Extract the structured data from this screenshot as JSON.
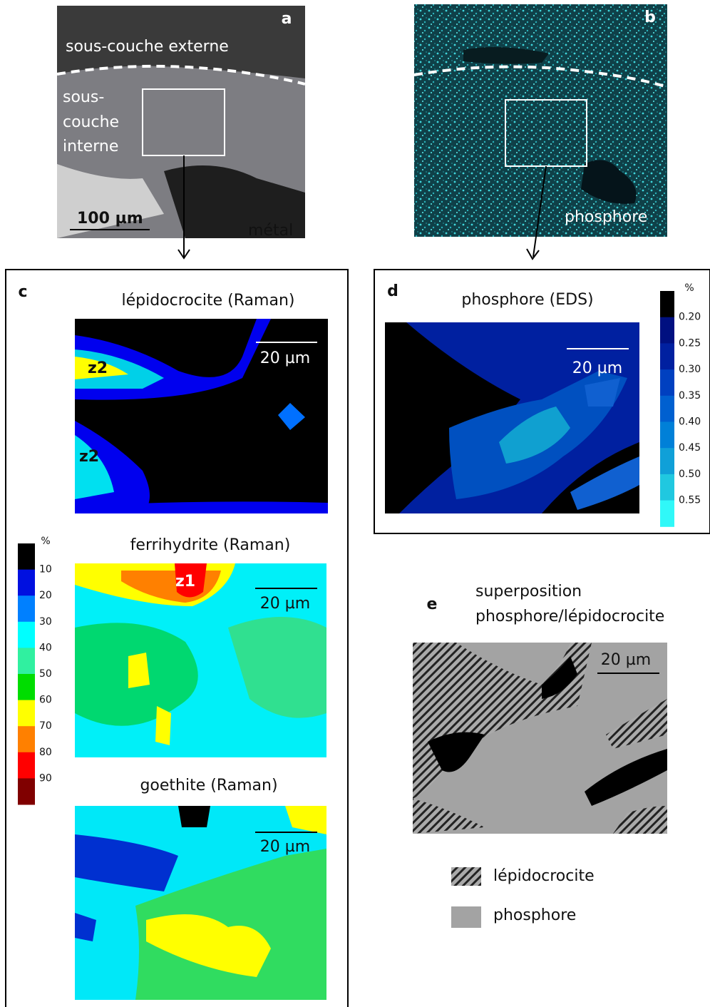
{
  "panel_a": {
    "letter": "a",
    "outer_layer": "sous-couche externe",
    "inner_layer": [
      "sous-",
      "couche",
      "interne"
    ],
    "scale_bar": "100 µm",
    "metal": "métal"
  },
  "panel_b": {
    "letter": "b",
    "element": "phosphore"
  },
  "panel_c": {
    "letter": "c",
    "maps": [
      {
        "title": "lépidocrocite (Raman)",
        "scale_bar": "20 µm",
        "zones": [
          "z2",
          "z2"
        ]
      },
      {
        "title": "ferrihydrite (Raman)",
        "scale_bar": "20 µm",
        "zones": [
          "z1"
        ]
      },
      {
        "title": "goethite (Raman)",
        "scale_bar": "20 µm"
      }
    ],
    "colorbar": {
      "unit": "%",
      "ticks": [
        "10",
        "20",
        "30",
        "40",
        "50",
        "60",
        "70",
        "80",
        "90"
      ]
    }
  },
  "panel_d": {
    "letter": "d",
    "title": "phosphore (EDS)",
    "scale_bar": "20 µm",
    "colorbar": {
      "unit": "%",
      "ticks": [
        "0.20",
        "0.25",
        "0.30",
        "0.35",
        "0.40",
        "0.45",
        "0.50",
        "0.55"
      ]
    }
  },
  "panel_e": {
    "letter": "e",
    "title": [
      "superposition",
      "phosphore/lépidocrocite"
    ],
    "scale_bar": "20 µm",
    "legend": [
      "lépidocrocite",
      "phosphore"
    ]
  }
}
